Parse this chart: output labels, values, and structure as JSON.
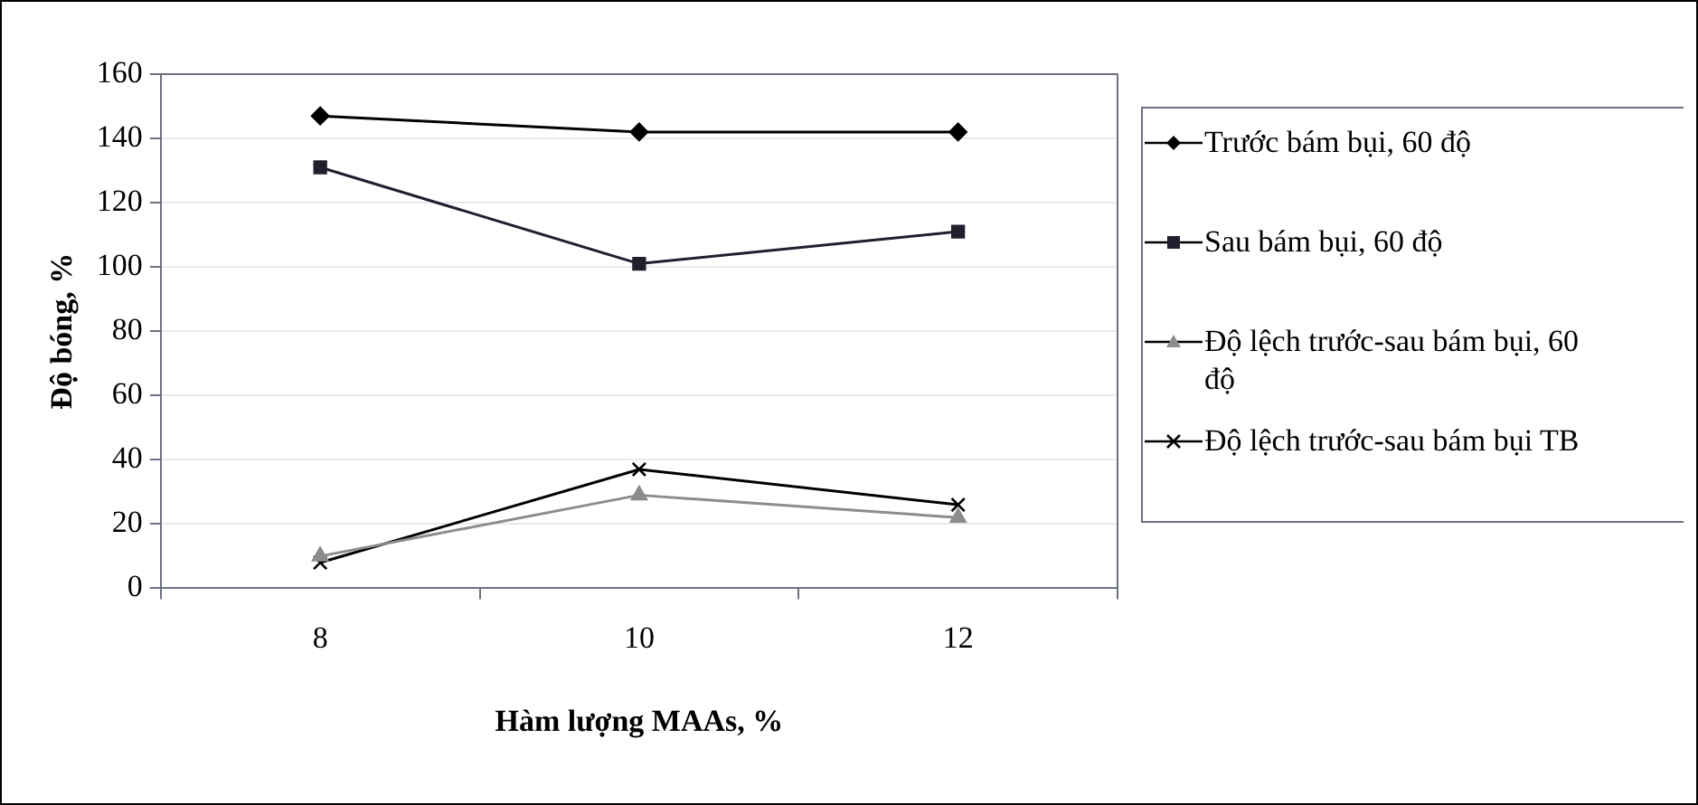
{
  "chart_data": {
    "type": "line",
    "xlabel": "Hàm lượng MAAs, %",
    "ylabel": "Độ bóng, %",
    "categories": [
      "8",
      "10",
      "12"
    ],
    "series": [
      {
        "name": "Trước bám bụi, 60 độ",
        "color": "#000000",
        "marker": "diamond",
        "values": [
          147,
          142,
          142
        ]
      },
      {
        "name": "Sau bám bụi, 60 độ",
        "color": "#1f1f2e",
        "marker": "square",
        "values": [
          131,
          101,
          111
        ]
      },
      {
        "name": "Độ lệch trước-sau bám bụi, 60 độ",
        "color": "#8c8c8c",
        "marker": "triangle",
        "values": [
          10,
          29,
          22
        ]
      },
      {
        "name": "Độ lệch trước-sau bám bụi TB",
        "color": "#000000",
        "marker": "cross",
        "values": [
          8,
          37,
          26
        ]
      }
    ],
    "ylim": [
      0,
      160
    ],
    "yticks": [
      0,
      20,
      40,
      60,
      80,
      100,
      120,
      140,
      160
    ],
    "grid": "y",
    "legend": "right",
    "line_style": "solid"
  }
}
